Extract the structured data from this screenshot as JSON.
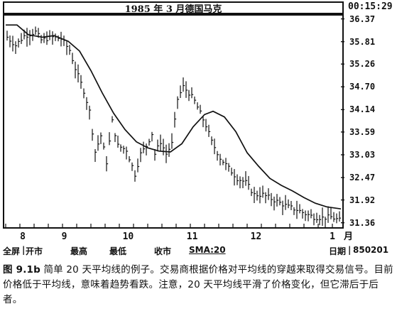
{
  "header": {
    "title": "1985 年 3 月德国马克",
    "clock": "00:15:29"
  },
  "toolbar": {
    "fullscreen": "全屏",
    "open": "开市",
    "high": "最高",
    "low": "最低",
    "close": "收市",
    "sma": "SMA:20",
    "date_label": "日期",
    "date_value": "850201"
  },
  "caption": {
    "figure_label": "图 9.1b",
    "text": "简单 20 天平均线的例子。交易商根据价格对平均线的穿越来取得交易信号。目前价格低于平均线，意味着趋势看跌。注意，20 天平均线平滑了价格变化，但它滞后于后者。"
  },
  "colors": {
    "ink": "#111111",
    "background": "#ffffff"
  },
  "chart_data": {
    "type": "line",
    "title": "1985 年 3 月德国马克",
    "xlabel": "月",
    "ylabel": "",
    "x_ticks": [
      "8",
      "9",
      "10",
      "11",
      "12",
      "1"
    ],
    "y_ticks": [
      36.37,
      35.81,
      35.26,
      34.7,
      34.14,
      33.59,
      33.03,
      32.47,
      31.92,
      31.36
    ],
    "y_tick_labels": [
      "36.37",
      "35.81",
      "35.26",
      "34.70",
      "34.14",
      "33.59",
      "33.03",
      "32.47",
      "31.92",
      "31.36"
    ],
    "ylim": [
      31.25,
      36.45
    ],
    "n_days": 118,
    "month_starts": {
      "8": 8,
      "9": 31,
      "10": 53,
      "11": 76,
      "12": 98,
      "1": 118
    },
    "grid": false,
    "legend": "none",
    "series": [
      {
        "name": "SMA:20",
        "kind": "line",
        "points": [
          [
            0,
            36.22
          ],
          [
            4,
            36.22
          ],
          [
            8,
            35.98
          ],
          [
            13,
            35.92
          ],
          [
            17,
            35.96
          ],
          [
            22,
            35.82
          ],
          [
            26,
            35.58
          ],
          [
            30,
            35.1
          ],
          [
            34,
            34.55
          ],
          [
            38,
            34.05
          ],
          [
            42,
            33.65
          ],
          [
            46,
            33.35
          ],
          [
            50,
            33.2
          ],
          [
            54,
            33.12
          ],
          [
            58,
            33.1
          ],
          [
            62,
            33.3
          ],
          [
            66,
            33.72
          ],
          [
            70,
            34.02
          ],
          [
            73,
            34.1
          ],
          [
            77,
            33.96
          ],
          [
            81,
            33.6
          ],
          [
            85,
            33.08
          ],
          [
            89,
            32.75
          ],
          [
            93,
            32.45
          ],
          [
            97,
            32.28
          ],
          [
            101,
            32.14
          ],
          [
            105,
            31.98
          ],
          [
            109,
            31.84
          ],
          [
            113,
            31.75
          ],
          [
            118,
            31.7
          ]
        ]
      },
      {
        "name": "",
        "kind": "hlc-bars",
        "anchors": [
          [
            0,
            35.92
          ],
          [
            3,
            35.72
          ],
          [
            6,
            35.95
          ],
          [
            10,
            36.05
          ],
          [
            12,
            35.85
          ],
          [
            16,
            35.92
          ],
          [
            19,
            35.88
          ],
          [
            22,
            35.6
          ],
          [
            24,
            35.15
          ],
          [
            27,
            34.6
          ],
          [
            29,
            34.1
          ],
          [
            31,
            33.1
          ],
          [
            33,
            33.5
          ],
          [
            35,
            32.85
          ],
          [
            37,
            33.85
          ],
          [
            39,
            33.25
          ],
          [
            42,
            33.15
          ],
          [
            45,
            32.55
          ],
          [
            47,
            33.05
          ],
          [
            49,
            33.25
          ],
          [
            51,
            33.55
          ],
          [
            52,
            33.05
          ],
          [
            54,
            33.35
          ],
          [
            56,
            33.05
          ],
          [
            58,
            33.3
          ],
          [
            60,
            34.4
          ],
          [
            62,
            34.7
          ],
          [
            64,
            34.55
          ],
          [
            66,
            34.35
          ],
          [
            68,
            34.05
          ],
          [
            70,
            33.75
          ],
          [
            72,
            33.35
          ],
          [
            75,
            32.95
          ],
          [
            78,
            32.7
          ],
          [
            81,
            32.45
          ],
          [
            84,
            32.35
          ],
          [
            87,
            32.05
          ],
          [
            90,
            32.05
          ],
          [
            93,
            31.95
          ],
          [
            96,
            31.85
          ],
          [
            99,
            31.75
          ],
          [
            102,
            31.68
          ],
          [
            105,
            31.58
          ],
          [
            108,
            31.5
          ],
          [
            111,
            31.48
          ],
          [
            114,
            31.5
          ],
          [
            117,
            31.42
          ]
        ]
      }
    ]
  }
}
